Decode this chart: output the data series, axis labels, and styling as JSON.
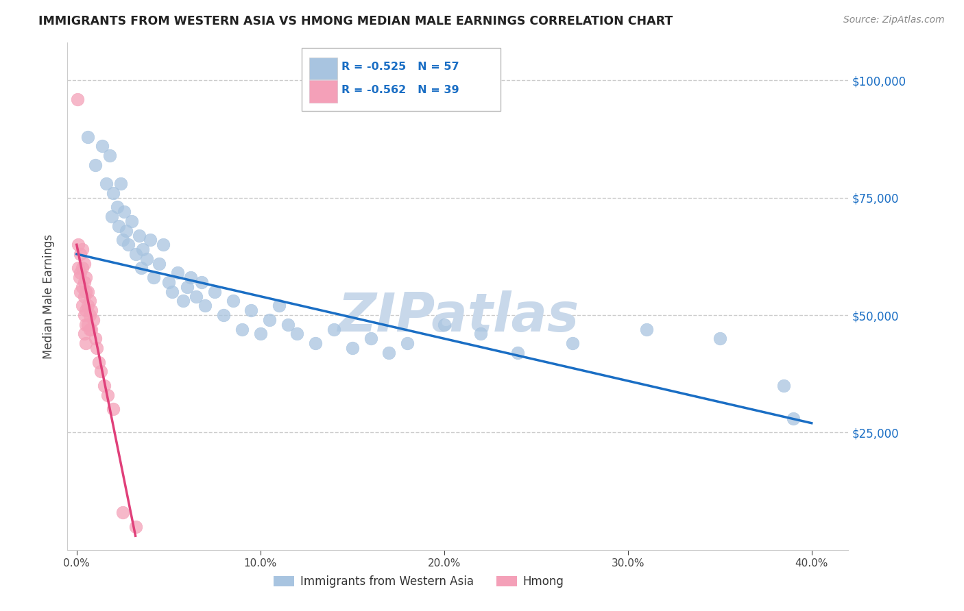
{
  "title": "IMMIGRANTS FROM WESTERN ASIA VS HMONG MEDIAN MALE EARNINGS CORRELATION CHART",
  "source": "Source: ZipAtlas.com",
  "ylabel": "Median Male Earnings",
  "xlabel_ticks": [
    "0.0%",
    "10.0%",
    "20.0%",
    "30.0%",
    "40.0%"
  ],
  "xlabel_tick_vals": [
    0.0,
    0.1,
    0.2,
    0.3,
    0.4
  ],
  "ylabel_ticks": [
    "$25,000",
    "$50,000",
    "$75,000",
    "$100,000"
  ],
  "ylabel_tick_vals": [
    25000,
    50000,
    75000,
    100000
  ],
  "xlim": [
    -0.005,
    0.42
  ],
  "ylim": [
    0,
    108000
  ],
  "legend_blue_label": "R = -0.525   N = 57",
  "legend_pink_label": "R = -0.562   N = 39",
  "legend_bottom_blue": "Immigrants from Western Asia",
  "legend_bottom_pink": "Hmong",
  "blue_scatter_x": [
    0.006,
    0.01,
    0.014,
    0.016,
    0.018,
    0.019,
    0.02,
    0.022,
    0.023,
    0.024,
    0.025,
    0.026,
    0.027,
    0.028,
    0.03,
    0.032,
    0.034,
    0.035,
    0.036,
    0.038,
    0.04,
    0.042,
    0.045,
    0.047,
    0.05,
    0.052,
    0.055,
    0.058,
    0.06,
    0.062,
    0.065,
    0.068,
    0.07,
    0.075,
    0.08,
    0.085,
    0.09,
    0.095,
    0.1,
    0.105,
    0.11,
    0.115,
    0.12,
    0.13,
    0.14,
    0.15,
    0.16,
    0.17,
    0.18,
    0.2,
    0.22,
    0.24,
    0.27,
    0.31,
    0.35,
    0.385,
    0.39
  ],
  "blue_scatter_y": [
    88000,
    82000,
    86000,
    78000,
    84000,
    71000,
    76000,
    73000,
    69000,
    78000,
    66000,
    72000,
    68000,
    65000,
    70000,
    63000,
    67000,
    60000,
    64000,
    62000,
    66000,
    58000,
    61000,
    65000,
    57000,
    55000,
    59000,
    53000,
    56000,
    58000,
    54000,
    57000,
    52000,
    55000,
    50000,
    53000,
    47000,
    51000,
    46000,
    49000,
    52000,
    48000,
    46000,
    44000,
    47000,
    43000,
    45000,
    42000,
    44000,
    48000,
    46000,
    42000,
    44000,
    47000,
    45000,
    35000,
    28000
  ],
  "pink_scatter_x": [
    0.0005,
    0.001,
    0.001,
    0.0015,
    0.002,
    0.002,
    0.002,
    0.003,
    0.003,
    0.003,
    0.003,
    0.004,
    0.004,
    0.004,
    0.004,
    0.004,
    0.005,
    0.005,
    0.005,
    0.005,
    0.005,
    0.006,
    0.006,
    0.006,
    0.007,
    0.007,
    0.007,
    0.008,
    0.008,
    0.009,
    0.01,
    0.011,
    0.012,
    0.013,
    0.015,
    0.017,
    0.02,
    0.025,
    0.032
  ],
  "pink_scatter_y": [
    96000,
    65000,
    60000,
    58000,
    63000,
    59000,
    55000,
    64000,
    60000,
    56000,
    52000,
    61000,
    57000,
    54000,
    50000,
    46000,
    58000,
    55000,
    51000,
    48000,
    44000,
    55000,
    52000,
    48000,
    53000,
    50000,
    47000,
    51000,
    47000,
    49000,
    45000,
    43000,
    40000,
    38000,
    35000,
    33000,
    30000,
    8000,
    5000
  ],
  "blue_line_x": [
    0.0,
    0.4
  ],
  "blue_line_y": [
    63000,
    27000
  ],
  "pink_line_x": [
    0.0,
    0.032
  ],
  "pink_line_y": [
    65000,
    3000
  ],
  "blue_color": "#a8c4e0",
  "pink_color": "#f4a0b8",
  "blue_line_color": "#1a6ec4",
  "pink_line_color": "#e0407a",
  "watermark": "ZIPatlas",
  "watermark_color": "#c8d8ea",
  "grid_color": "#cccccc",
  "title_color": "#222222",
  "source_color": "#888888"
}
